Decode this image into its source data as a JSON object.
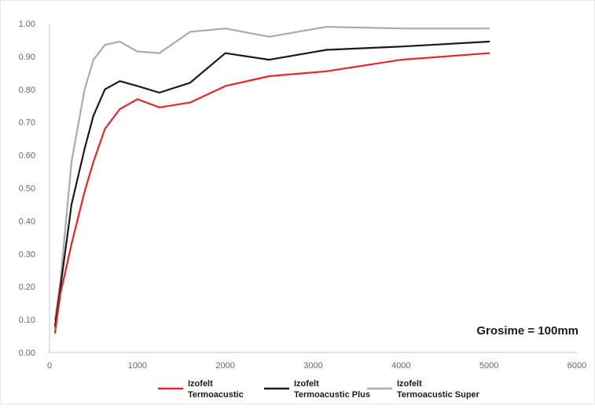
{
  "chart_data": {
    "type": "line",
    "title": "",
    "xlabel": "",
    "ylabel": "",
    "xlim": [
      0,
      6000
    ],
    "ylim": [
      0,
      1
    ],
    "x_ticks": [
      0,
      1000,
      2000,
      3000,
      4000,
      5000,
      6000
    ],
    "x_tick_labels": [
      "0",
      "1000",
      "2000",
      "3000",
      "4000",
      "5000",
      "6000"
    ],
    "y_ticks": [
      0,
      0.1,
      0.2,
      0.3,
      0.4,
      0.5,
      0.6,
      0.7,
      0.8,
      0.9,
      1.0
    ],
    "y_tick_labels": [
      "0.00",
      "0.10",
      "0.20",
      "0.30",
      "0.40",
      "0.50",
      "0.60",
      "0.70",
      "0.80",
      "0.90",
      "1.00"
    ],
    "grid": false,
    "legend_position": "bottom",
    "annotation": "Grosime = 100mm",
    "x": [
      63,
      125,
      250,
      400,
      500,
      630,
      800,
      1000,
      1250,
      1600,
      2000,
      2500,
      3150,
      4000,
      5000
    ],
    "series": [
      {
        "name": [
          "Izofelt",
          "Termoacustic"
        ],
        "color": "#e8262a",
        "values": [
          0.06,
          0.18,
          0.33,
          0.49,
          0.58,
          0.68,
          0.74,
          0.77,
          0.745,
          0.76,
          0.81,
          0.84,
          0.855,
          0.89,
          0.91
        ]
      },
      {
        "name": [
          "Izofelt",
          "Termoacustic Plus"
        ],
        "color": "#1a1a1a",
        "values": [
          0.08,
          0.2,
          0.45,
          0.62,
          0.72,
          0.8,
          0.825,
          0.81,
          0.79,
          0.82,
          0.91,
          0.89,
          0.92,
          0.93,
          0.945
        ]
      },
      {
        "name": [
          "Izofelt",
          "Termoacustic Super"
        ],
        "color": "#aaaaaa",
        "values": [
          0.1,
          0.22,
          0.58,
          0.8,
          0.89,
          0.935,
          0.945,
          0.915,
          0.91,
          0.975,
          0.985,
          0.96,
          0.99,
          0.985,
          0.985
        ]
      }
    ]
  }
}
